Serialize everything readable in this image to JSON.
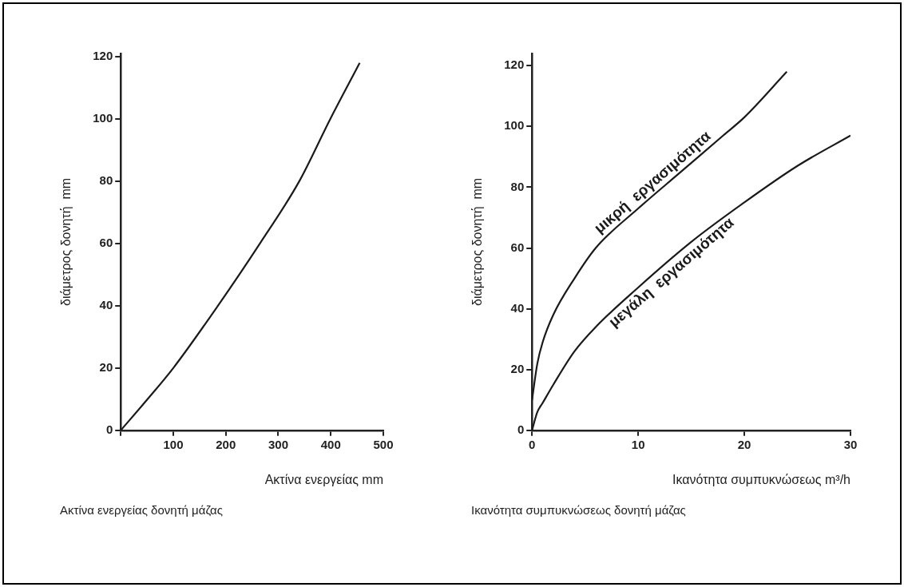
{
  "chart_data": [
    {
      "type": "line",
      "xlabel": "Ακτίνα ενεργείας mm",
      "ylabel": "διάμετρος δονητή  mm",
      "annotations": [
        "Ακτίνα ενεργείας δονητή μάζας"
      ],
      "series": [
        {
          "color": "#1a1a1a",
          "x": [
            0,
            51,
            100,
            185,
            265,
            340,
            399,
            455
          ],
          "values": [
            0,
            10,
            20,
            40,
            60,
            80,
            100,
            118
          ]
        }
      ],
      "xlim": [
        0,
        500
      ],
      "ylim": [
        0,
        121
      ],
      "xticks": [
        {
          "value": 0,
          "label": null
        },
        100,
        200,
        300,
        400,
        500
      ],
      "yticks": [
        0,
        20,
        40,
        60,
        80,
        100,
        120
      ],
      "grid": false,
      "legend": false,
      "marker": "none",
      "line_style": "solid"
    },
    {
      "type": "line",
      "xlabel": "Ικανότητα συμπυκνώσεως m³/h",
      "ylabel": "διάμετρος δονητή  mm",
      "annotations": [
        "Ικανότητα συμπυκνώσεως δονητή μάζας"
      ],
      "series": [
        {
          "name": "μικρή  εργασιμότητα",
          "color": "#1a1a1a",
          "x": [
            0,
            0.5,
            1,
            2,
            4,
            6,
            10,
            14,
            18,
            20,
            24
          ],
          "values": [
            10,
            22,
            29,
            38,
            50,
            60,
            73,
            85,
            97,
            103,
            118
          ]
        },
        {
          "name": "μεγάλη  εργασιμότητα",
          "color": "#1a1a1a",
          "x": [
            0,
            0.5,
            1,
            2,
            4,
            6,
            10,
            15,
            20,
            25,
            30
          ],
          "values": [
            0,
            6,
            9,
            15,
            26,
            34,
            47,
            62,
            75,
            87,
            97
          ]
        }
      ],
      "xlim": [
        0,
        30
      ],
      "ylim": [
        0,
        124
      ],
      "xticks": [
        0,
        10,
        20,
        30
      ],
      "yticks": [
        0,
        20,
        40,
        60,
        80,
        100,
        120
      ],
      "grid": false,
      "legend": false,
      "marker": "none",
      "line_style": "solid"
    }
  ]
}
